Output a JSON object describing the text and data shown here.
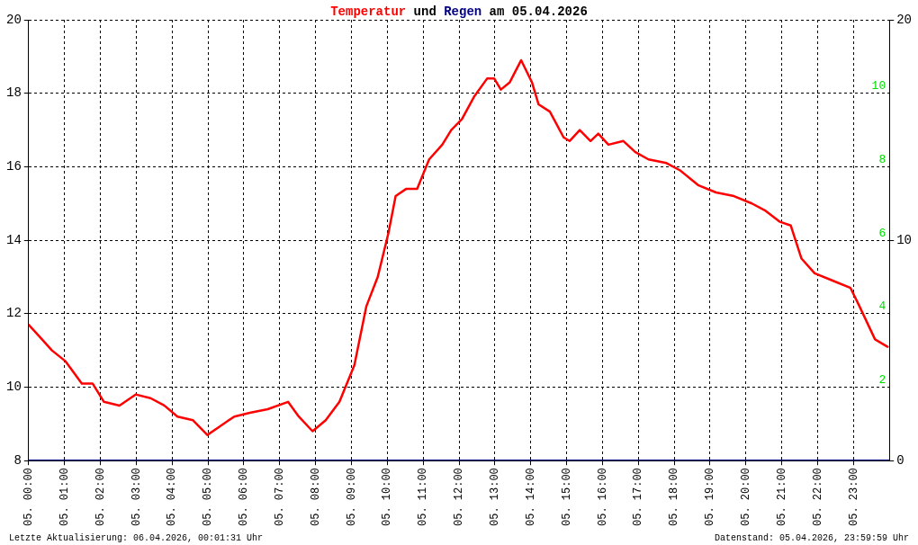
{
  "chart_data": {
    "type": "line",
    "title": "Temperatur und Regen am 05.04.2026",
    "annotations": [
      "Letzte Aktualisierung: 06.04.2026, 00:01:31 Uhr",
      "Datenstand: 05.04.2026, 23:59:59 Uhr"
    ],
    "series": [
      {
        "color": "#ff0000",
        "x": [
          "2026-04-05T00:00",
          "2026-04-05T00:17",
          "2026-04-05T00:39",
          "2026-04-05T01:02",
          "2026-04-05T01:29",
          "2026-04-05T01:47",
          "2026-04-05T02:06",
          "2026-04-05T02:32",
          "2026-04-05T02:59",
          "2026-04-05T03:24",
          "2026-04-05T03:47",
          "2026-04-05T04:09",
          "2026-04-05T04:35",
          "2026-04-05T04:59",
          "2026-04-05T05:17",
          "2026-04-05T05:44",
          "2026-04-05T06:10",
          "2026-04-05T06:40",
          "2026-04-05T07:14",
          "2026-04-05T07:32",
          "2026-04-05T07:55",
          "2026-04-05T08:17",
          "2026-04-05T08:40",
          "2026-04-05T09:05",
          "2026-04-05T09:25",
          "2026-04-05T09:44",
          "2026-04-05T10:02",
          "2026-04-05T10:14",
          "2026-04-05T10:32",
          "2026-04-05T10:50",
          "2026-04-05T11:10",
          "2026-04-05T11:32",
          "2026-04-05T11:47",
          "2026-04-05T12:05",
          "2026-04-05T12:25",
          "2026-04-05T12:47",
          "2026-04-05T12:59",
          "2026-04-05T13:10",
          "2026-04-05T13:25",
          "2026-04-05T13:44",
          "2026-04-05T14:02",
          "2026-04-05T14:13",
          "2026-04-05T14:32",
          "2026-04-05T14:55",
          "2026-04-05T15:05",
          "2026-04-05T15:22",
          "2026-04-05T15:40",
          "2026-04-05T15:53",
          "2026-04-05T16:10",
          "2026-04-05T16:35",
          "2026-04-05T16:55",
          "2026-04-05T17:17",
          "2026-04-05T17:47",
          "2026-04-05T18:10",
          "2026-04-05T18:40",
          "2026-04-05T19:10",
          "2026-04-05T19:40",
          "2026-04-05T20:10",
          "2026-04-05T20:33",
          "2026-04-05T20:57",
          "2026-04-05T21:15",
          "2026-04-05T21:33",
          "2026-04-05T21:55",
          "2026-04-05T22:25",
          "2026-04-05T22:55",
          "2026-04-05T23:10",
          "2026-04-05T23:36",
          "2026-04-05T23:57"
        ],
        "values": [
          11.7,
          11.4,
          11.0,
          10.7,
          10.1,
          10.1,
          9.6,
          9.5,
          9.8,
          9.7,
          9.5,
          9.2,
          9.1,
          8.7,
          8.9,
          9.2,
          9.3,
          9.4,
          9.6,
          9.2,
          8.8,
          9.1,
          9.6,
          10.6,
          12.2,
          13.0,
          14.2,
          15.2,
          15.4,
          15.4,
          16.2,
          16.6,
          17.0,
          17.3,
          17.9,
          18.4,
          18.4,
          18.1,
          18.3,
          18.9,
          18.3,
          17.7,
          17.5,
          16.8,
          16.7,
          17.0,
          16.7,
          16.9,
          16.6,
          16.7,
          16.4,
          16.2,
          16.1,
          15.9,
          15.5,
          15.3,
          15.2,
          15.0,
          14.8,
          14.5,
          14.4,
          13.5,
          13.1,
          12.9,
          12.7,
          12.2,
          11.3,
          11.1
        ]
      },
      {
        "color": "#000080",
        "axis": "y2",
        "x": [
          "2026-04-05T00:00",
          "2026-04-06T00:00"
        ],
        "values": [
          0,
          0
        ]
      }
    ],
    "xlim": [
      "2026-04-05T00:00",
      "2026-04-06T00:00"
    ],
    "xticks": [
      {
        "value": "2026-04-05T00:00",
        "label": "05. 00:00"
      },
      {
        "value": "2026-04-05T01:00",
        "label": "05. 01:00"
      },
      {
        "value": "2026-04-05T02:00",
        "label": "05. 02:00"
      },
      {
        "value": "2026-04-05T03:00",
        "label": "05. 03:00"
      },
      {
        "value": "2026-04-05T04:00",
        "label": "05. 04:00"
      },
      {
        "value": "2026-04-05T05:00",
        "label": "05. 05:00"
      },
      {
        "value": "2026-04-05T06:00",
        "label": "05. 06:00"
      },
      {
        "value": "2026-04-05T07:00",
        "label": "05. 07:00"
      },
      {
        "value": "2026-04-05T08:00",
        "label": "05. 08:00"
      },
      {
        "value": "2026-04-05T09:00",
        "label": "05. 09:00"
      },
      {
        "value": "2026-04-05T10:00",
        "label": "05. 10:00"
      },
      {
        "value": "2026-04-05T11:00",
        "label": "05. 11:00"
      },
      {
        "value": "2026-04-05T12:00",
        "label": "05. 12:00"
      },
      {
        "value": "2026-04-05T13:00",
        "label": "05. 13:00"
      },
      {
        "value": "2026-04-05T14:00",
        "label": "05. 14:00"
      },
      {
        "value": "2026-04-05T15:00",
        "label": "05. 15:00"
      },
      {
        "value": "2026-04-05T16:00",
        "label": "05. 16:00"
      },
      {
        "value": "2026-04-05T17:00",
        "label": "05. 17:00"
      },
      {
        "value": "2026-04-05T18:00",
        "label": "05. 18:00"
      },
      {
        "value": "2026-04-05T19:00",
        "label": "05. 19:00"
      },
      {
        "value": "2026-04-05T20:00",
        "label": "05. 20:00"
      },
      {
        "value": "2026-04-05T21:00",
        "label": "05. 21:00"
      },
      {
        "value": "2026-04-05T22:00",
        "label": "05. 22:00"
      },
      {
        "value": "2026-04-05T23:00",
        "label": "05. 23:00"
      }
    ],
    "ylim": [
      8,
      20
    ],
    "yticks": [
      8,
      10,
      12,
      14,
      16,
      18,
      20
    ],
    "y2lim": [
      0,
      20
    ],
    "y2ticks": [
      0,
      10,
      20
    ],
    "y3lim": [
      0,
      12
    ],
    "y3ticks": [
      2,
      4,
      6,
      8,
      10
    ],
    "grid": true,
    "legend": false
  }
}
